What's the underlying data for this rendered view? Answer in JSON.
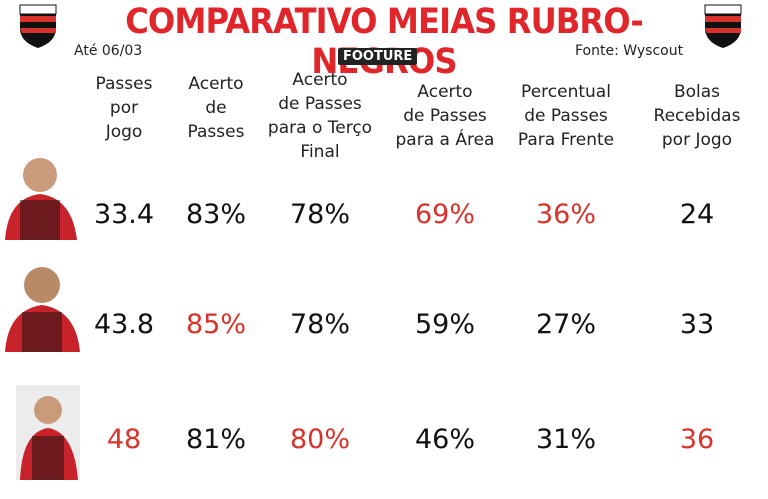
{
  "header": {
    "title": "COMPARATIVO MEIAS RUBRO-NEGROS",
    "date": "Até 06/03",
    "brand": "FOOTURE",
    "source": "Fonte: Wyscout"
  },
  "table": {
    "columns": [
      "Passes\npor\nJogo",
      "Acerto\nde\nPasses",
      "Acerto\nde Passes\npara o Terço\nFinal",
      "Acerto\nde Passes\npara a Área",
      "Percentual\nde Passes\nPara Frente",
      "Bolas\nRecebidas\npor Jogo"
    ],
    "rows": [
      [
        {
          "text": "33.4",
          "color": "#111111"
        },
        {
          "text": "83%",
          "color": "#111111"
        },
        {
          "text": "78%",
          "color": "#111111"
        },
        {
          "text": "69%",
          "color": "#d8322c"
        },
        {
          "text": "36%",
          "color": "#d8322c"
        },
        {
          "text": "24",
          "color": "#111111"
        }
      ],
      [
        {
          "text": "43.8",
          "color": "#111111"
        },
        {
          "text": "85%",
          "color": "#d8322c"
        },
        {
          "text": "78%",
          "color": "#111111"
        },
        {
          "text": "59%",
          "color": "#111111"
        },
        {
          "text": "27%",
          "color": "#111111"
        },
        {
          "text": "33",
          "color": "#111111"
        }
      ],
      [
        {
          "text": "48",
          "color": "#d8322c"
        },
        {
          "text": "81%",
          "color": "#111111"
        },
        {
          "text": "80%",
          "color": "#d8322c"
        },
        {
          "text": "46%",
          "color": "#111111"
        },
        {
          "text": "31%",
          "color": "#111111"
        },
        {
          "text": "36",
          "color": "#d8322c"
        }
      ]
    ]
  }
}
